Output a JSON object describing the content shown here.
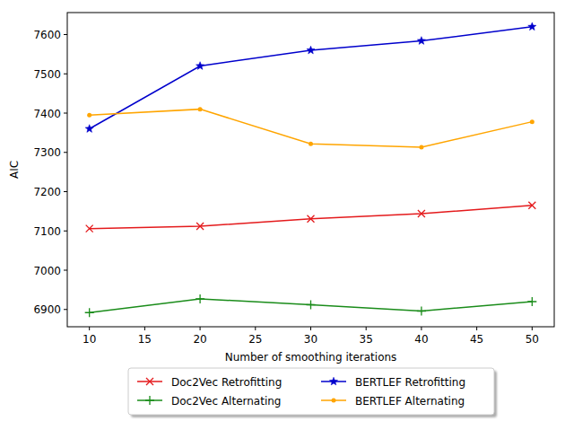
{
  "chart_data": {
    "type": "line",
    "x_label": "Number of smoothing iterations",
    "y_label": "AIC",
    "x": [
      10,
      20,
      30,
      40,
      50
    ],
    "xlim": [
      8,
      52
    ],
    "xticks": [
      10,
      15,
      20,
      25,
      30,
      35,
      40,
      45,
      50
    ],
    "ylim": [
      6856,
      7656
    ],
    "yticks": [
      6900,
      7000,
      7100,
      7200,
      7300,
      7400,
      7500,
      7600
    ],
    "grid": false,
    "legend": "bottom",
    "series": [
      {
        "name": "Doc2Vec Retrofitting",
        "color": "#e41a1c",
        "marker": "x",
        "values": [
          7106,
          7112,
          7131,
          7144,
          7165
        ]
      },
      {
        "name": "Doc2Vec Alternating",
        "color": "#1a8c1a",
        "marker": "plus",
        "values": [
          6892,
          6927,
          6912,
          6896,
          6920
        ]
      },
      {
        "name": "BERTLEF Retrofitting",
        "color": "#0000cc",
        "marker": "star",
        "values": [
          7360,
          7520,
          7560,
          7584,
          7620
        ]
      },
      {
        "name": "BERTLEF Alternating",
        "color": "#ffa500",
        "marker": "dot",
        "values": [
          7395,
          7410,
          7322,
          7313,
          7378
        ]
      }
    ]
  }
}
